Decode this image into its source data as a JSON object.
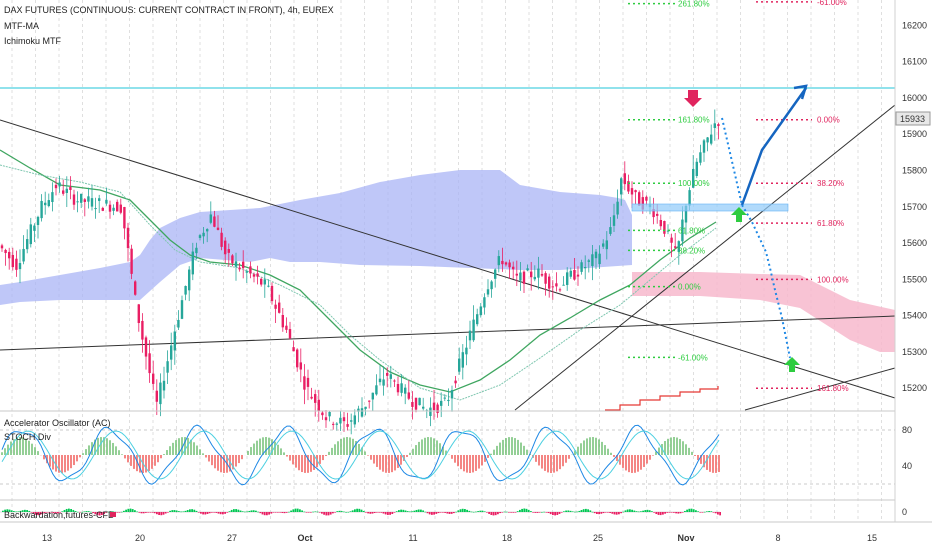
{
  "header": {
    "title": "DAX FUTURES (CONTINUOUS: CURRENT CONTRACT IN FRONT), 4h, EUREX",
    "indicator1": "MTF-MA",
    "indicator2": "Ichimoku MTF"
  },
  "panes": {
    "ac_label": "Accelerator Oscillator (AC)",
    "stoch_label": "STOCH Div",
    "backwardation_label": "Backwardation,futures-CFD"
  },
  "colors": {
    "bull": "#26a69a",
    "bear": "#ef5350",
    "cloud": "#aab4f5",
    "cloud_red": "#f7b9cc",
    "resistance": "#4dd0e1",
    "fib_green": "#2ecc40",
    "fib_red": "#e0245e",
    "arrow_blue": "#1565c0",
    "ma": "#3fa660"
  },
  "chart_data": {
    "type": "candlestick",
    "x_ticks": [
      "13",
      "20",
      "27",
      "Oct",
      "11",
      "18",
      "25",
      "Nov",
      "8",
      "15"
    ],
    "y_ticks": [
      15200,
      15300,
      15400,
      15500,
      15600,
      15700,
      15800,
      15900,
      16000,
      16100,
      16200
    ],
    "ylim": [
      15140,
      16270
    ],
    "current_price": "15933",
    "resistance_level": 16020,
    "fib_green": [
      {
        "label": "261.80%",
        "price": 16260
      },
      {
        "label": "161.80%",
        "price": 15940
      },
      {
        "label": "100.00%",
        "price": 15765
      },
      {
        "label": "61.80%",
        "price": 15635
      },
      {
        "label": "38.20%",
        "price": 15580
      },
      {
        "label": "0.00%",
        "price": 15480
      },
      {
        "label": "-61.00%",
        "price": 15285
      }
    ],
    "fib_red": [
      {
        "label": "-61.00%",
        "price": 16265
      },
      {
        "label": "0.00%",
        "price": 15940
      },
      {
        "label": "38.20%",
        "price": 15765
      },
      {
        "label": "61.80%",
        "price": 15655
      },
      {
        "label": "100.00%",
        "price": 15500
      },
      {
        "label": "161.80%",
        "price": 15200
      }
    ],
    "osc_ticks": [
      80,
      40
    ],
    "backwardation_tick": 0
  }
}
